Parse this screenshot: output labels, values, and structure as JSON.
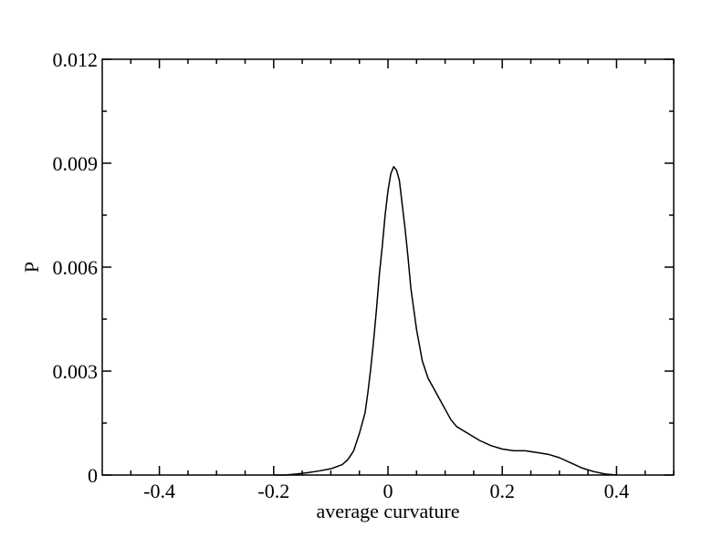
{
  "chart_data": {
    "type": "line",
    "xlabel": "average curvature",
    "ylabel": "P",
    "xlim": [
      -0.5,
      0.5
    ],
    "ylim": [
      0,
      0.012
    ],
    "x_ticks": [
      -0.4,
      -0.2,
      0,
      0.2,
      0.4
    ],
    "x_tick_labels": [
      "-0.4",
      "-0.2",
      "0",
      "0.2",
      "0.4"
    ],
    "y_ticks": [
      0,
      0.003,
      0.006,
      0.009,
      0.012
    ],
    "y_tick_labels": [
      "0",
      "0.003",
      "0.006",
      "0.009",
      "0.012"
    ],
    "grid": false,
    "legend": "none",
    "series": [
      {
        "color": "#000000",
        "x": [
          -0.2,
          -0.18,
          -0.16,
          -0.14,
          -0.12,
          -0.1,
          -0.08,
          -0.07,
          -0.06,
          -0.05,
          -0.04,
          -0.035,
          -0.03,
          -0.025,
          -0.02,
          -0.015,
          -0.01,
          -0.005,
          0.0,
          0.005,
          0.01,
          0.015,
          0.02,
          0.025,
          0.03,
          0.035,
          0.04,
          0.05,
          0.06,
          0.07,
          0.08,
          0.09,
          0.1,
          0.11,
          0.12,
          0.14,
          0.16,
          0.18,
          0.2,
          0.22,
          0.24,
          0.26,
          0.28,
          0.3,
          0.32,
          0.34,
          0.36,
          0.38,
          0.4
        ],
        "y": [
          0.0,
          0.0,
          3e-05,
          7e-05,
          0.00012,
          0.00018,
          0.0003,
          0.00045,
          0.0007,
          0.0012,
          0.0018,
          0.0024,
          0.0031,
          0.0039,
          0.0048,
          0.0058,
          0.0066,
          0.0075,
          0.0082,
          0.0087,
          0.0089,
          0.0088,
          0.0085,
          0.0078,
          0.0071,
          0.0063,
          0.0054,
          0.0042,
          0.0033,
          0.0028,
          0.0025,
          0.0022,
          0.0019,
          0.0016,
          0.0014,
          0.0012,
          0.001,
          0.00085,
          0.00075,
          0.0007,
          0.0007,
          0.00065,
          0.0006,
          0.0005,
          0.00035,
          0.0002,
          0.0001,
          3e-05,
          0.0
        ]
      }
    ]
  }
}
